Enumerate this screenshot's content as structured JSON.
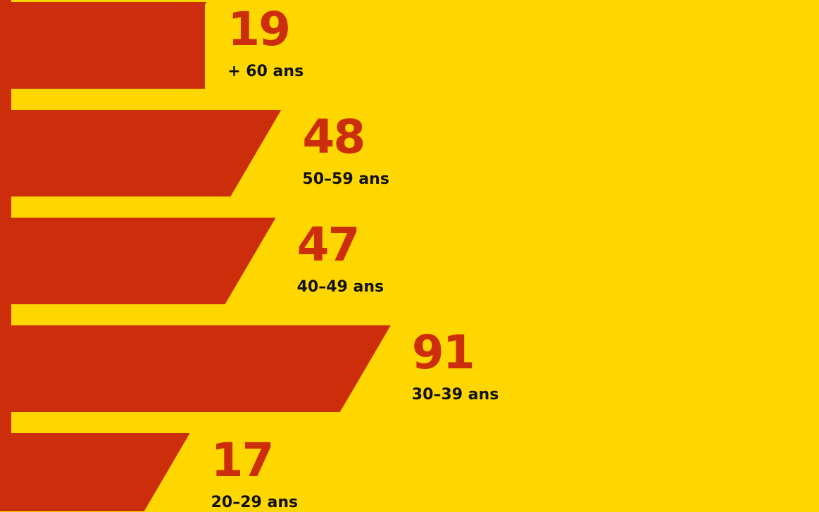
{
  "colors": {
    "background": "#FFD700",
    "bar": "#CC2E0C",
    "value_text": "#CC2E0C",
    "category_text": "#111111"
  },
  "chart_data": {
    "type": "bar",
    "orientation": "horizontal",
    "title": "",
    "xlabel": "",
    "ylabel": "",
    "grid": false,
    "legend": "none",
    "categories": [
      "+ 60 ans",
      "50-59 ans",
      "40-49 ans",
      "30-39 ans",
      "20-29 ans"
    ],
    "values": [
      19,
      48,
      47,
      91,
      17
    ],
    "value_labels": [
      "19",
      "48",
      "47",
      "91",
      "17"
    ],
    "category_labels": [
      "+ 60 ans",
      "50–59 ans",
      "40–49 ans",
      "30–39 ans",
      "20–29 ans"
    ]
  }
}
